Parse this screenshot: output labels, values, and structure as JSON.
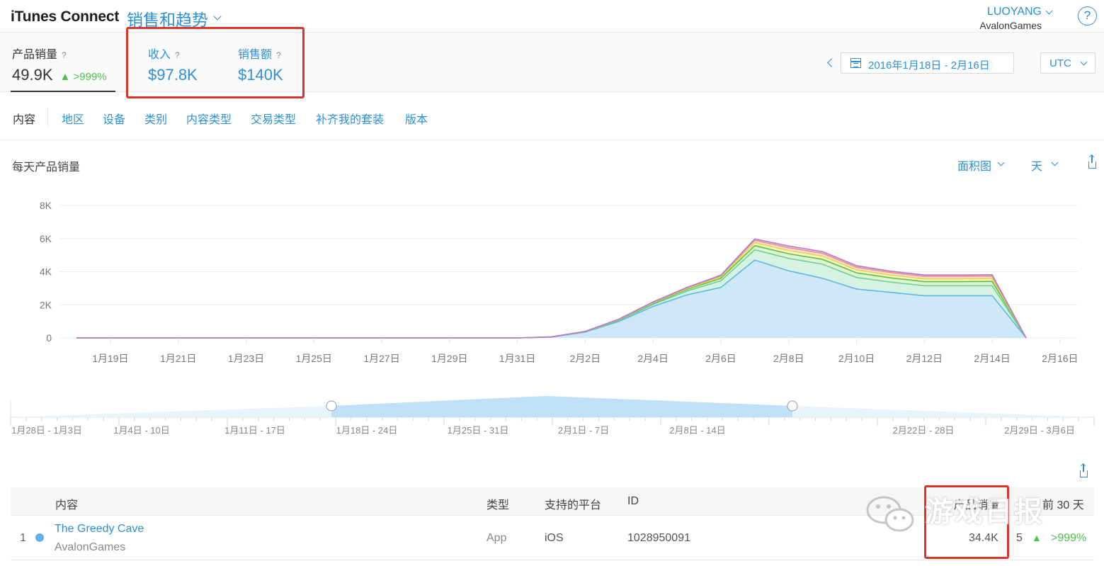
{
  "header": {
    "brand": "iTunes Connect",
    "module": "销售和趋势",
    "user_name": "LUOYANG",
    "user_org": "AvalonGames",
    "help": "?"
  },
  "summary": {
    "units_label": "产品销量",
    "units_value": "49.9K",
    "units_change": "▲ >999%",
    "proceeds_label": "收入",
    "proceeds_value": "$97.8K",
    "sales_label": "销售额",
    "sales_value": "$140K",
    "question": "?",
    "date_range": "2016年1月18日 - 2月16日",
    "timezone": "UTC"
  },
  "tabs": [
    "内容",
    "地区",
    "设备",
    "类别",
    "内容类型",
    "交易类型",
    "补齐我的套装",
    "版本"
  ],
  "chart_header": {
    "title": "每天产品销量",
    "chart_type_label": "面积图",
    "period_label": "天"
  },
  "chart_data": {
    "type": "area",
    "title": "每天产品销量",
    "ylim": [
      0,
      8000
    ],
    "y_ticks": [
      "0",
      "2K",
      "4K",
      "6K",
      "8K"
    ],
    "x_tick_labels": [
      "1月19日",
      "1月21日",
      "1月23日",
      "1月25日",
      "1月27日",
      "1月29日",
      "1月31日",
      "2月2日",
      "2月4日",
      "2月6日",
      "2月8日",
      "2月10日",
      "2月12日",
      "2月14日",
      "2月16日"
    ],
    "x": [
      "1月18日",
      "1月19日",
      "1月20日",
      "1月21日",
      "1月22日",
      "1月23日",
      "1月24日",
      "1月25日",
      "1月26日",
      "1月27日",
      "1月28日",
      "1月29日",
      "1月30日",
      "1月31日",
      "2月1日",
      "2月2日",
      "2月3日",
      "2月4日",
      "2月5日",
      "2月6日",
      "2月7日",
      "2月8日",
      "2月9日",
      "2月10日",
      "2月11日",
      "2月12日",
      "2月13日",
      "2月14日",
      "2月15日"
    ],
    "stacked": true,
    "series": [
      {
        "color": "#5bb8e6",
        "fill": "#cfe8f8",
        "values": [
          0,
          0,
          0,
          0,
          0,
          0,
          0,
          0,
          0,
          0,
          0,
          0,
          0,
          0,
          50,
          350,
          1000,
          1900,
          2600,
          3050,
          4700,
          4050,
          3600,
          2950,
          2750,
          2550,
          2550,
          2550,
          0
        ]
      },
      {
        "color": "#6fcf97",
        "fill": "#d6f2e2",
        "values": [
          0,
          0,
          0,
          0,
          0,
          0,
          0,
          0,
          0,
          0,
          0,
          0,
          0,
          0,
          5,
          20,
          60,
          120,
          230,
          400,
          620,
          750,
          850,
          700,
          620,
          600,
          600,
          600,
          0
        ]
      },
      {
        "color": "#55c24f",
        "fill": "#dff3cf",
        "values": [
          0,
          0,
          0,
          0,
          0,
          0,
          0,
          0,
          0,
          0,
          0,
          0,
          0,
          0,
          5,
          10,
          30,
          60,
          100,
          150,
          250,
          280,
          290,
          280,
          260,
          250,
          250,
          260,
          0
        ]
      },
      {
        "color": "#e8d84a",
        "fill": "#f7f3c6",
        "values": [
          0,
          0,
          0,
          0,
          0,
          0,
          0,
          0,
          0,
          0,
          0,
          0,
          0,
          0,
          0,
          5,
          20,
          40,
          50,
          80,
          180,
          200,
          200,
          180,
          170,
          170,
          170,
          170,
          0
        ]
      },
      {
        "color": "#ee8f87",
        "fill": "#f9dcd8",
        "values": [
          0,
          0,
          0,
          0,
          0,
          0,
          0,
          0,
          0,
          0,
          0,
          0,
          0,
          0,
          0,
          5,
          20,
          30,
          40,
          70,
          150,
          170,
          170,
          160,
          150,
          150,
          150,
          150,
          0
        ]
      },
      {
        "color": "#b07ad6",
        "fill": "#ead9f5",
        "values": [
          0,
          0,
          0,
          0,
          0,
          0,
          0,
          0,
          0,
          0,
          0,
          0,
          0,
          0,
          0,
          5,
          10,
          20,
          30,
          40,
          80,
          100,
          100,
          90,
          80,
          80,
          80,
          80,
          0
        ]
      }
    ],
    "grid": true
  },
  "brush": {
    "week_labels": [
      "1月28日 - 1月3日",
      "1月4日 - 10日",
      "1月11日 - 17日",
      "1月18日 - 24日",
      "1月25日 - 31日",
      "2月1日 - 7日",
      "2月8日 - 14日",
      "2月22日 - 28日",
      "2月29日 - 3月6日"
    ]
  },
  "table": {
    "headers": {
      "content": "内容",
      "type": "类型",
      "platform": "支持的平台",
      "id": "ID",
      "units": "产品销量",
      "prev": "前 30 天"
    },
    "rows": [
      {
        "index": "1",
        "name": "The Greedy Cave",
        "developer": "AvalonGames",
        "type": "App",
        "platform": "iOS",
        "id": "1028950091",
        "units": "34.4K",
        "prev_units": "5",
        "change": "▲",
        "change_pct": ">999%"
      }
    ]
  },
  "watermark": "游戏日报",
  "colors": {
    "accent": "#2d8fd4",
    "highlight_box": "#d8362b",
    "positive": "#4cc04f"
  }
}
